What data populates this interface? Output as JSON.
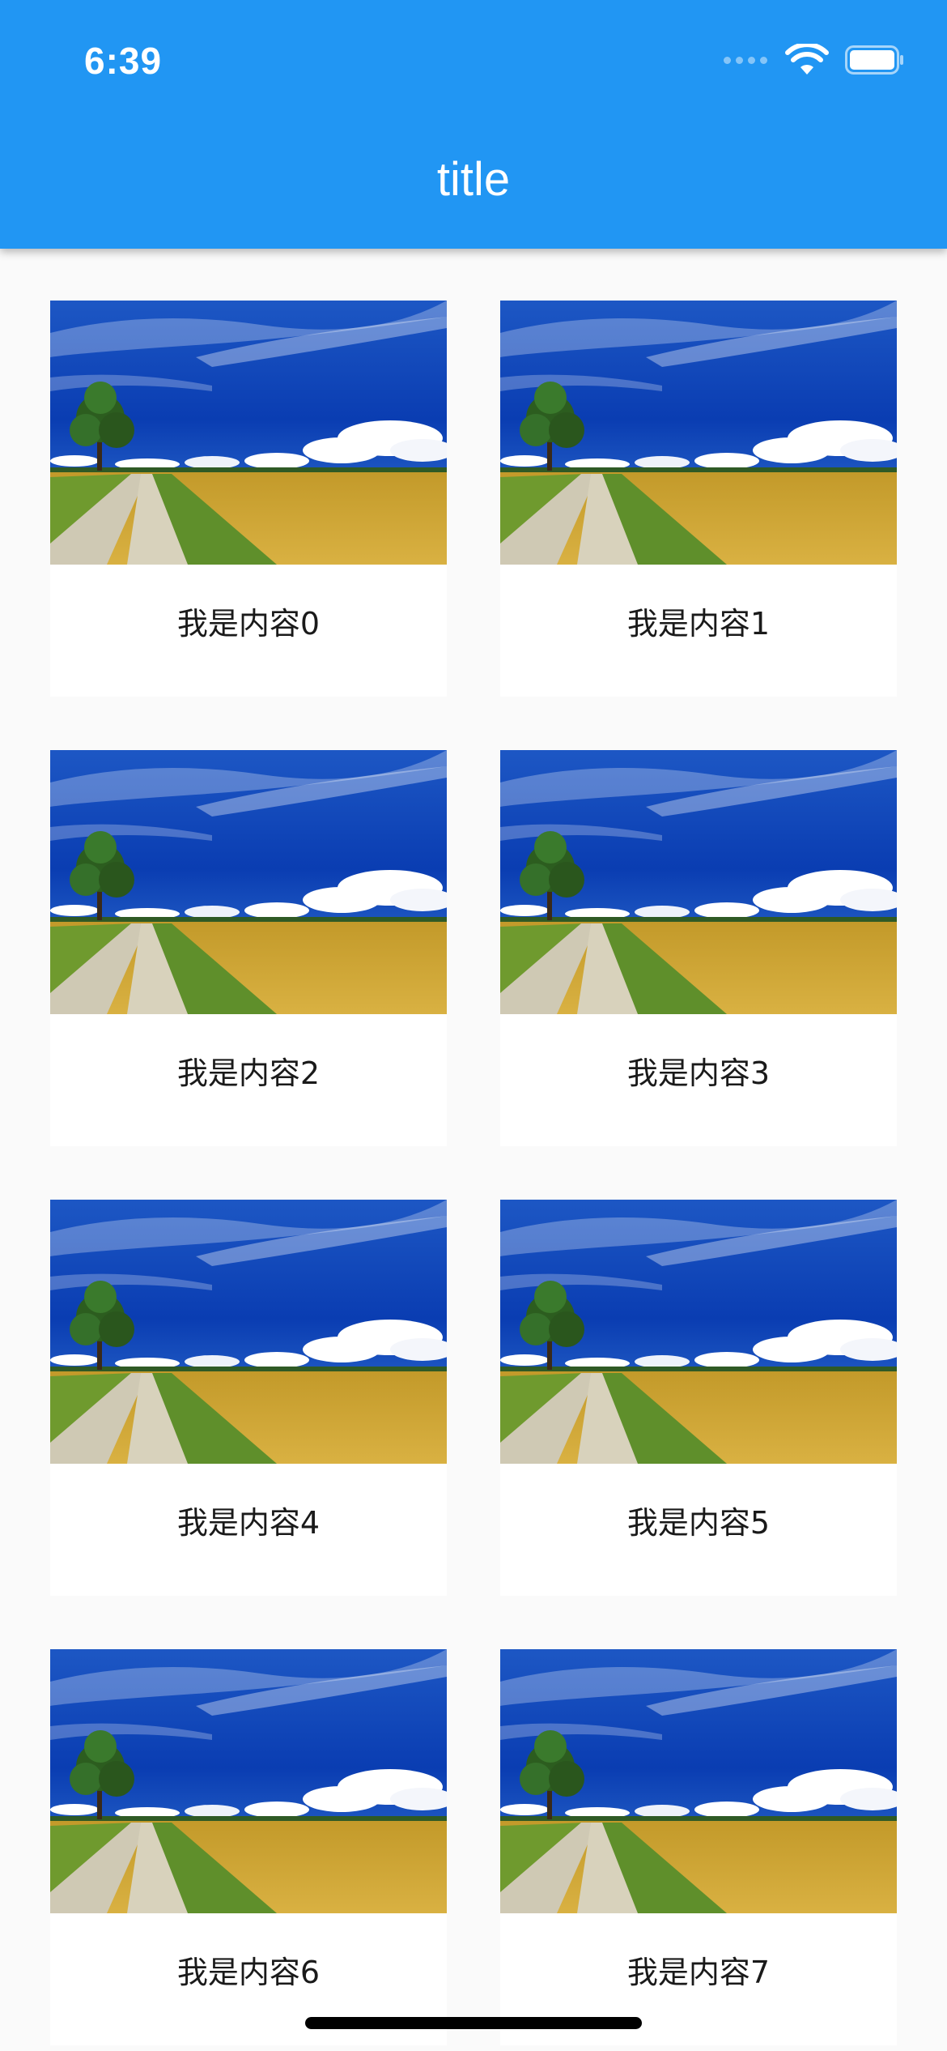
{
  "status_bar": {
    "time": "6:39"
  },
  "app_bar": {
    "title": "title",
    "background": "#2196f3"
  },
  "icons": {
    "signal": "cellular-signal-icon",
    "wifi": "wifi-icon",
    "battery": "battery-icon",
    "image": "landscape-photo"
  },
  "grid": {
    "items": [
      {
        "label": "我是内容0"
      },
      {
        "label": "我是内容1"
      },
      {
        "label": "我是内容2"
      },
      {
        "label": "我是内容3"
      },
      {
        "label": "我是内容4"
      },
      {
        "label": "我是内容5"
      },
      {
        "label": "我是内容6"
      },
      {
        "label": "我是内容7"
      }
    ]
  }
}
